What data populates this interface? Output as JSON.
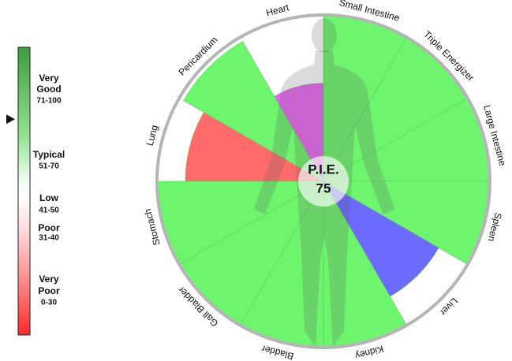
{
  "chart_data": {
    "type": "polar",
    "center_label": "P.I.E.",
    "score": 75,
    "rlim": [
      0,
      100
    ],
    "categories": [
      "Small Intestine",
      "Triple Energizer",
      "Large Intestine",
      "Spleen",
      "Liver",
      "Kidney",
      "Bladder",
      "Gall Bladder",
      "Stomach",
      "Lung",
      "Pericardium",
      "Heart"
    ],
    "values": [
      100,
      100,
      100,
      100,
      80,
      100,
      100,
      100,
      100,
      83,
      97,
      59
    ],
    "colors": [
      "#6ef56e",
      "#6ef56e",
      "#6ef56e",
      "#6ef56e",
      "#6b6bff",
      "#6ef56e",
      "#6ef56e",
      "#6ef56e",
      "#6ef56e",
      "#ff6b6b",
      "#6ef56e",
      "#e766f0"
    ],
    "legend": [
      {
        "label": "Very Good",
        "range": "71-100"
      },
      {
        "label": "Typical",
        "range": "51-70"
      },
      {
        "label": "Low",
        "range": "41-50"
      },
      {
        "label": "Poor",
        "range": "31-40"
      },
      {
        "label": "Very Poor",
        "range": "0-30"
      }
    ]
  }
}
